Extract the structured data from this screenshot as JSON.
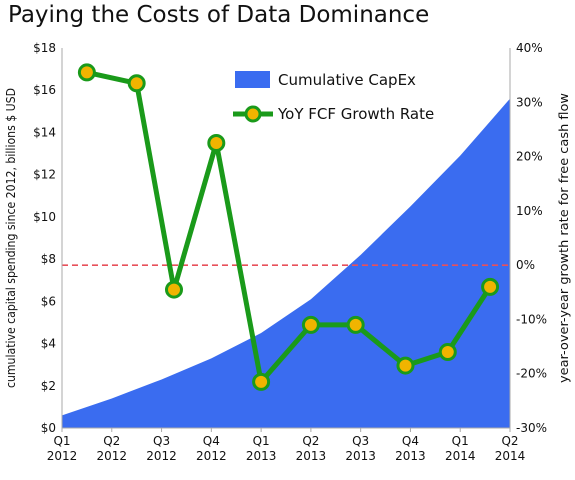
{
  "chart_data": {
    "type": "area",
    "title": "Paying the Costs of Data Dominance",
    "x_categories": [
      [
        "Q1",
        "2012"
      ],
      [
        "Q2",
        "2012"
      ],
      [
        "Q3",
        "2012"
      ],
      [
        "Q4",
        "2012"
      ],
      [
        "Q1",
        "2013"
      ],
      [
        "Q2",
        "2013"
      ],
      [
        "Q3",
        "2013"
      ],
      [
        "Q4",
        "2013"
      ],
      [
        "Q1",
        "2014"
      ],
      [
        "Q2",
        "2014"
      ]
    ],
    "ylabel_left": "cumulative capital spending since 2012, billions $ USD",
    "ylabel_right": "year-over-year growth rate for free cash flow",
    "ylim_left": [
      0,
      18
    ],
    "ylim_right": [
      -30,
      40
    ],
    "yticks_left": [
      "$0",
      "$2",
      "$4",
      "$6",
      "$8",
      "$10",
      "$12",
      "$14",
      "$16",
      "$18"
    ],
    "yticks_right": [
      "-30%",
      "-20%",
      "-10%",
      "0%",
      "10%",
      "20%",
      "30%",
      "40%"
    ],
    "legend_position": "top-right",
    "series": [
      {
        "name": "Cumulative CapEx",
        "type": "area",
        "axis": "left",
        "color": "#3a6cf0",
        "x": [
          1,
          2,
          3,
          4,
          5,
          6,
          7,
          8,
          9,
          10
        ],
        "values": [
          0.6,
          1.4,
          2.3,
          3.3,
          4.5,
          6.1,
          8.2,
          10.5,
          12.9,
          15.6
        ]
      },
      {
        "name": "YoY FCF Growth Rate",
        "type": "line",
        "axis": "right",
        "color": "#1a9a1a",
        "marker_color": "#f0b400",
        "x": [
          1.5,
          2.5,
          3.25,
          4.1,
          5.0,
          6.0,
          6.9,
          7.9,
          8.75,
          9.6
        ],
        "values": [
          35.5,
          33.5,
          -4.5,
          22.5,
          -21.5,
          -11.0,
          -11.0,
          -18.5,
          -16.0,
          -4.0
        ]
      }
    ],
    "reference_line": {
      "axis": "right",
      "value": 0,
      "style": "dashed",
      "color": "#e8505b"
    }
  }
}
